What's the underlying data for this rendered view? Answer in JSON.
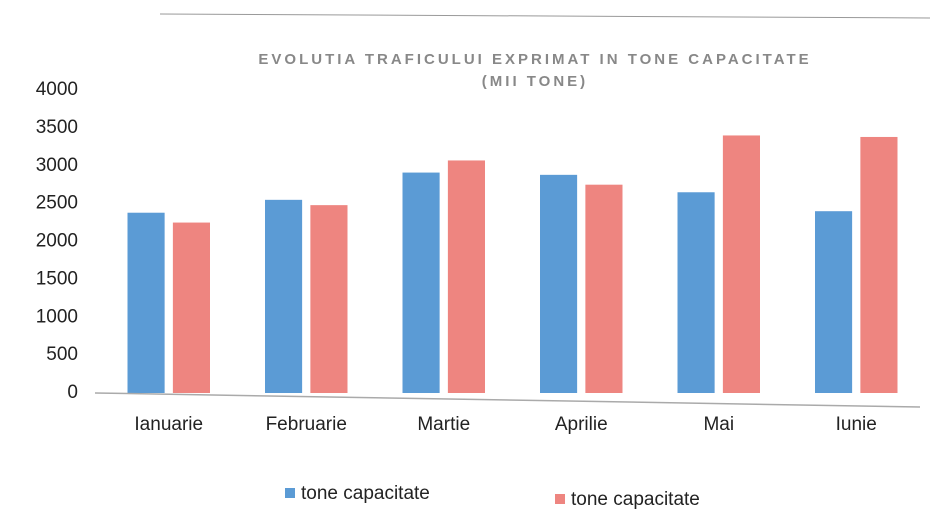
{
  "chart_data": {
    "type": "bar",
    "title": "EVOLUTIA TRAFICULUI EXPRIMAT IN TONE CAPACITATE",
    "subtitle": "(MII TONE)",
    "categories": [
      "Ianuarie",
      "Februarie",
      "Martie",
      "Aprilie",
      "Mai",
      "Iunie"
    ],
    "series": [
      {
        "name": "tone capacitate",
        "color": "#5b9bd5",
        "values": [
          2380,
          2550,
          2910,
          2880,
          2650,
          2400
        ]
      },
      {
        "name": "tone capacitate",
        "color": "#ee8580",
        "values": [
          2250,
          2480,
          3070,
          2750,
          3400,
          3380
        ]
      }
    ],
    "ylim": [
      0,
      4000
    ],
    "yticks": [
      0,
      500,
      1000,
      1500,
      2000,
      2500,
      3000,
      3500,
      4000
    ],
    "grid": false,
    "legend": "bottom"
  }
}
